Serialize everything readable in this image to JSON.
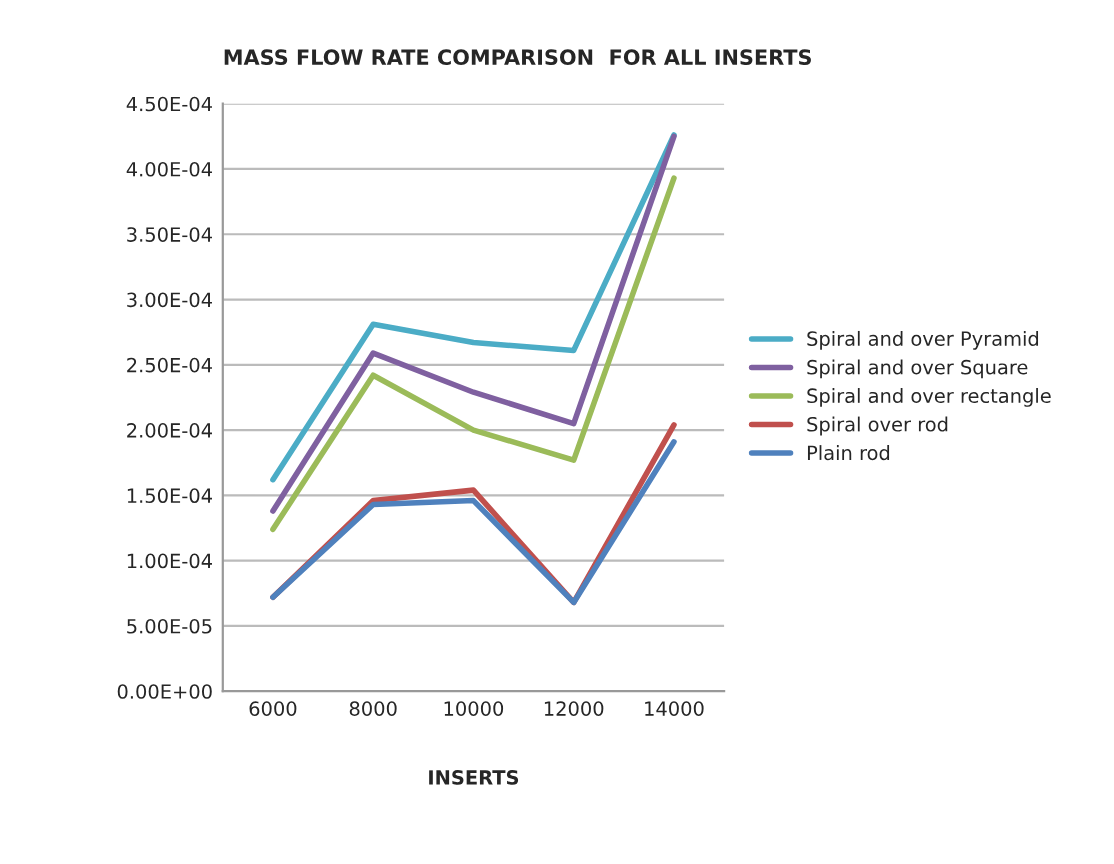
{
  "chart_data": {
    "type": "line",
    "title": "MASS FLOW RATE COMPARISON  FOR ALL INSERTS",
    "xlabel": "INSERTS",
    "categories": [
      "6000",
      "8000",
      "10000",
      "12000",
      "14000"
    ],
    "series": [
      {
        "name": "Spiral and over Pyramid",
        "color": "#4bacc6",
        "values": [
          0.000162,
          0.000281,
          0.000267,
          0.000261,
          0.000426
        ]
      },
      {
        "name": "Spiral and over Square",
        "color": "#7f60a0",
        "values": [
          0.000138,
          0.000259,
          0.000229,
          0.000205,
          0.000425
        ]
      },
      {
        "name": "Spiral and over rectangle",
        "color": "#9bbb59",
        "values": [
          0.000124,
          0.000242,
          0.0002,
          0.000177,
          0.000393
        ]
      },
      {
        "name": "Spiral over rod",
        "color": "#c0504d",
        "values": [
          7.2e-05,
          0.000146,
          0.000154,
          6.8e-05,
          0.000204
        ]
      },
      {
        "name": "Plain rod",
        "color": "#4f81bd",
        "values": [
          7.2e-05,
          0.000143,
          0.000146,
          6.8e-05,
          0.000191
        ]
      }
    ],
    "ylim": [
      0,
      0.00045
    ],
    "yticks": [
      {
        "value": 0,
        "label": "0.00E+00"
      },
      {
        "value": 5e-05,
        "label": "5.00E-05"
      },
      {
        "value": 0.0001,
        "label": "1.00E-04"
      },
      {
        "value": 0.00015,
        "label": "1.50E-04"
      },
      {
        "value": 0.0002,
        "label": "2.00E-04"
      },
      {
        "value": 0.00025,
        "label": "2.50E-04"
      },
      {
        "value": 0.0003,
        "label": "3.00E-04"
      },
      {
        "value": 0.00035,
        "label": "3.50E-04"
      },
      {
        "value": 0.0004,
        "label": "4.00E-04"
      },
      {
        "value": 0.00045,
        "label": "4.50E-04"
      }
    ],
    "grid": "y",
    "legend": "right",
    "marker": "none",
    "line_style": "solid"
  }
}
